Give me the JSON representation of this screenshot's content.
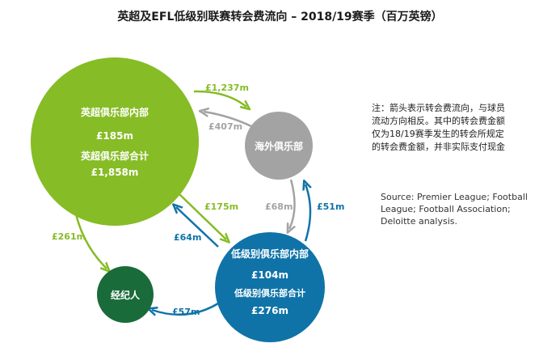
{
  "title": "英超及EFL低级别联赛转会费流向 – 2018/19赛季（百万英镑）",
  "colors": {
    "premier": "#86bc25",
    "overseas": "#a3a3a3",
    "efl": "#0f73a8",
    "agents": "#1a6b3a",
    "text": "#ffffff"
  },
  "nodes": {
    "premier": {
      "name": "英超俱乐部内部",
      "internal": "£185m",
      "total_label": "英超俱乐部合计",
      "total": "£1,858m"
    },
    "overseas": {
      "name": "海外俱乐部"
    },
    "efl": {
      "name": "低级别俱乐部内部",
      "internal": "£104m",
      "total_label": "低级别俱乐部合计",
      "total": "£276m"
    },
    "agents": {
      "name": "经纪人"
    }
  },
  "flows": {
    "premier_to_overseas": "£1,237m",
    "overseas_to_premier": "£407m",
    "premier_to_efl": "£175m",
    "efl_to_premier": "£64m",
    "overseas_to_efl": "£68m",
    "efl_to_overseas": "£51m",
    "premier_to_agents": "£261m",
    "efl_to_agents": "£57m"
  },
  "note": "注：箭头表示转会费流向，与球员\n流动方向相反。其中的转会费金额\n仅为18/19赛季发生的转会所规定\n的转会费金额，并非实际支付现金",
  "source": "Source: Premier League; Football\nLeague; Football Association;\nDeloitte analysis."
}
